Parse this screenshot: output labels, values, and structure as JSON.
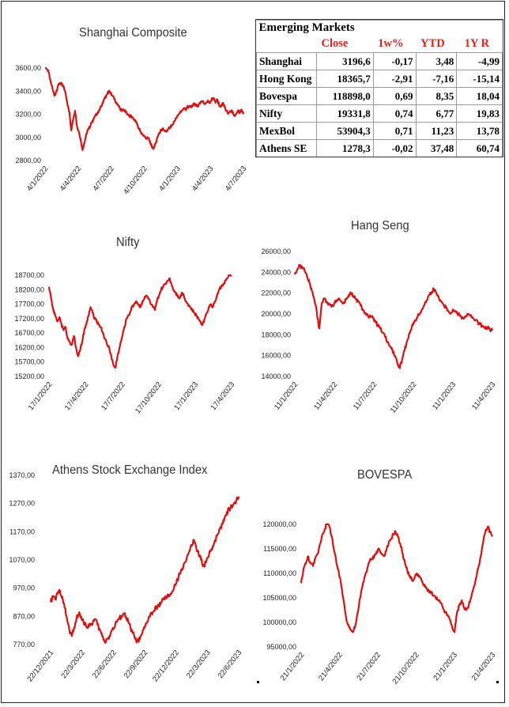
{
  "table": {
    "title": "Emerging Markets",
    "headers": [
      "",
      "Close",
      "1w%",
      "YTD",
      "1Y R"
    ],
    "rows": [
      [
        "Shanghai",
        "3196,6",
        "-0,17",
        "3,48",
        "-4,99"
      ],
      [
        "Hong Kong",
        "18365,7",
        "-2,91",
        "-7,16",
        "-15,14"
      ],
      [
        "Bovespa",
        "118898,0",
        "0,69",
        "8,35",
        "18,04"
      ],
      [
        "Nifty",
        "19331,8",
        "0,74",
        "6,77",
        "19,83"
      ],
      [
        "MexBol",
        "53904,3",
        "0,71",
        "11,23",
        "13,78"
      ],
      [
        "Athens SE",
        "1278,3",
        "-0,02",
        "37,48",
        "60,74"
      ]
    ]
  },
  "colors": {
    "line": "#e01010",
    "header": "#e2211c"
  },
  "chart_data": [
    {
      "id": "shanghai",
      "type": "line",
      "title": "Shanghai Composite",
      "yticks": [
        "3600,00",
        "3400,00",
        "3200,00",
        "3000,00",
        "2800,00"
      ],
      "ylim": [
        2800,
        3600
      ],
      "xticks": [
        "4/1/2022",
        "4/4/2022",
        "4/7/2022",
        "4/10/2022",
        "4/1/2023",
        "4/4/2023",
        "4/7/2023"
      ],
      "values": [
        3632,
        3590,
        3560,
        3480,
        3420,
        3360,
        3390,
        3450,
        3470,
        3460,
        3440,
        3380,
        3280,
        3220,
        3060,
        3150,
        3230,
        3100,
        3050,
        2980,
        2890,
        2950,
        3030,
        3070,
        3090,
        3130,
        3160,
        3190,
        3210,
        3240,
        3270,
        3300,
        3340,
        3370,
        3400,
        3380,
        3360,
        3330,
        3300,
        3280,
        3250,
        3230,
        3240,
        3220,
        3200,
        3180,
        3190,
        3170,
        3150,
        3120,
        3080,
        3050,
        3030,
        3010,
        2990,
        3000,
        2970,
        2920,
        2900,
        2950,
        3000,
        3040,
        3060,
        3080,
        3060,
        3050,
        3080,
        3090,
        3110,
        3140,
        3170,
        3190,
        3210,
        3230,
        3250,
        3240,
        3260,
        3270,
        3260,
        3280,
        3290,
        3270,
        3280,
        3300,
        3310,
        3290,
        3300,
        3320,
        3300,
        3330,
        3340,
        3300,
        3330,
        3280,
        3270,
        3300,
        3260,
        3230,
        3210,
        3220,
        3230,
        3190,
        3200,
        3230,
        3210,
        3240,
        3200
      ]
    },
    {
      "id": "nifty",
      "type": "line",
      "title": "Nifty",
      "yticks": [
        "18700,00",
        "18200,00",
        "17700,00",
        "17200,00",
        "16700,00",
        "16200,00",
        "15700,00",
        "15200,00"
      ],
      "ylim": [
        15200,
        18700
      ],
      "xticks": [
        "17/1/2022",
        "17/4/2022",
        "17/7/2022",
        "17/10/2022",
        "17/1/2023",
        "17/4/2023"
      ],
      "values": [
        18300,
        17900,
        17500,
        17300,
        17100,
        17250,
        17000,
        16800,
        16900,
        16500,
        16400,
        16300,
        16600,
        16200,
        15900,
        16100,
        16400,
        16800,
        17000,
        17300,
        17600,
        17400,
        17200,
        17100,
        17000,
        16900,
        16700,
        16500,
        16300,
        16200,
        15900,
        15600,
        15500,
        15900,
        16200,
        16500,
        16800,
        17100,
        17300,
        17400,
        17600,
        17700,
        17800,
        17700,
        17600,
        17800,
        17900,
        18000,
        17900,
        17700,
        17600,
        17500,
        17800,
        18000,
        18200,
        18300,
        18400,
        18500,
        18600,
        18400,
        18200,
        18100,
        18000,
        17900,
        18100,
        18000,
        17800,
        17700,
        17600,
        17500,
        17400,
        17300,
        17200,
        17100,
        17000,
        17200,
        17400,
        17600,
        17700,
        17600,
        17800,
        18000,
        18200,
        18300,
        18400,
        18500,
        18600,
        18700,
        18700
      ]
    },
    {
      "id": "hangseng",
      "type": "line",
      "title": "Hang Seng",
      "yticks": [
        "26000,00",
        "24000,00",
        "22000,00",
        "20000,00",
        "18000,00",
        "16000,00",
        "14000,00"
      ],
      "ylim": [
        14000,
        26000
      ],
      "xticks": [
        "11/1/2022",
        "11/4/2022",
        "11/7/2022",
        "11/10/2022",
        "11/1/2023",
        "11/4/2023"
      ],
      "values": [
        23800,
        24300,
        24600,
        24500,
        24200,
        23600,
        23000,
        22200,
        21400,
        20200,
        18600,
        21000,
        21500,
        21200,
        21000,
        20700,
        20900,
        21300,
        21500,
        21200,
        21000,
        21400,
        21800,
        22000,
        21700,
        21400,
        21200,
        20800,
        20400,
        20100,
        19800,
        19700,
        19600,
        19300,
        18900,
        18600,
        18200,
        17800,
        17300,
        16900,
        16500,
        16000,
        15300,
        14800,
        15600,
        16500,
        17400,
        18200,
        18800,
        19200,
        19600,
        20000,
        20400,
        20800,
        21300,
        21800,
        22100,
        22400,
        22000,
        21600,
        21200,
        20900,
        20600,
        20300,
        20100,
        20400,
        20200,
        20000,
        19800,
        19600,
        19800,
        20000,
        19800,
        19600,
        19400,
        19200,
        19000,
        18800,
        18600,
        18700,
        18500,
        18400
      ]
    },
    {
      "id": "athens",
      "type": "line",
      "title": "Athens Stock Exchange Index",
      "yticks": [
        "1370,00",
        "1270,00",
        "1170,00",
        "1070,00",
        "970,00",
        "870,00",
        "770,00"
      ],
      "ylim": [
        770,
        1370
      ],
      "xticks": [
        "22/12/2021",
        "22/3/2022",
        "22/6/2022",
        "22/9/2022",
        "22/12/2022",
        "22/3/2023",
        "22/6/2023"
      ],
      "values": [
        920,
        940,
        930,
        950,
        960,
        940,
        900,
        860,
        820,
        800,
        830,
        860,
        880,
        870,
        850,
        840,
        830,
        840,
        850,
        860,
        840,
        820,
        800,
        780,
        790,
        800,
        820,
        830,
        850,
        860,
        870,
        880,
        870,
        850,
        830,
        810,
        790,
        780,
        790,
        810,
        830,
        850,
        870,
        880,
        890,
        900,
        910,
        920,
        930,
        935,
        940,
        950,
        960,
        980,
        1000,
        1020,
        1040,
        1060,
        1080,
        1100,
        1120,
        1140,
        1110,
        1090,
        1070,
        1050,
        1060,
        1080,
        1100,
        1120,
        1140,
        1160,
        1180,
        1200,
        1220,
        1240,
        1250,
        1260,
        1270,
        1280,
        1295
      ]
    },
    {
      "id": "bovespa",
      "type": "line",
      "title": "BOVESPA",
      "yticks": [
        "120000,00",
        "115000,00",
        "110000,00",
        "105000,00",
        "100000,00",
        "95000,00"
      ],
      "ylim": [
        95000,
        120000
      ],
      "xticks": [
        "21/1/2022",
        "21/4/2022",
        "21/7/2022",
        "21/10/2022",
        "21/1/2023",
        "21/4/2023"
      ],
      "values": [
        108000,
        111000,
        112000,
        113500,
        112000,
        111500,
        113000,
        114000,
        116000,
        118000,
        119000,
        120500,
        119500,
        117500,
        114500,
        112000,
        110000,
        107500,
        104500,
        101000,
        99500,
        98500,
        98000,
        99500,
        102000,
        105000,
        107500,
        109500,
        111000,
        112500,
        113000,
        113500,
        114500,
        115000,
        114000,
        113500,
        114500,
        116000,
        117000,
        118000,
        118500,
        117500,
        116000,
        114000,
        112000,
        110500,
        109500,
        108500,
        109000,
        110000,
        109500,
        108500,
        107500,
        107000,
        106500,
        106000,
        105500,
        105000,
        104500,
        104000,
        103000,
        102000,
        101500,
        100500,
        99000,
        98000,
        102000,
        103500,
        104500,
        103000,
        102500,
        103500,
        105000,
        107000,
        109000,
        111000,
        113500,
        116000,
        118500,
        119500,
        118500,
        117500
      ]
    }
  ]
}
